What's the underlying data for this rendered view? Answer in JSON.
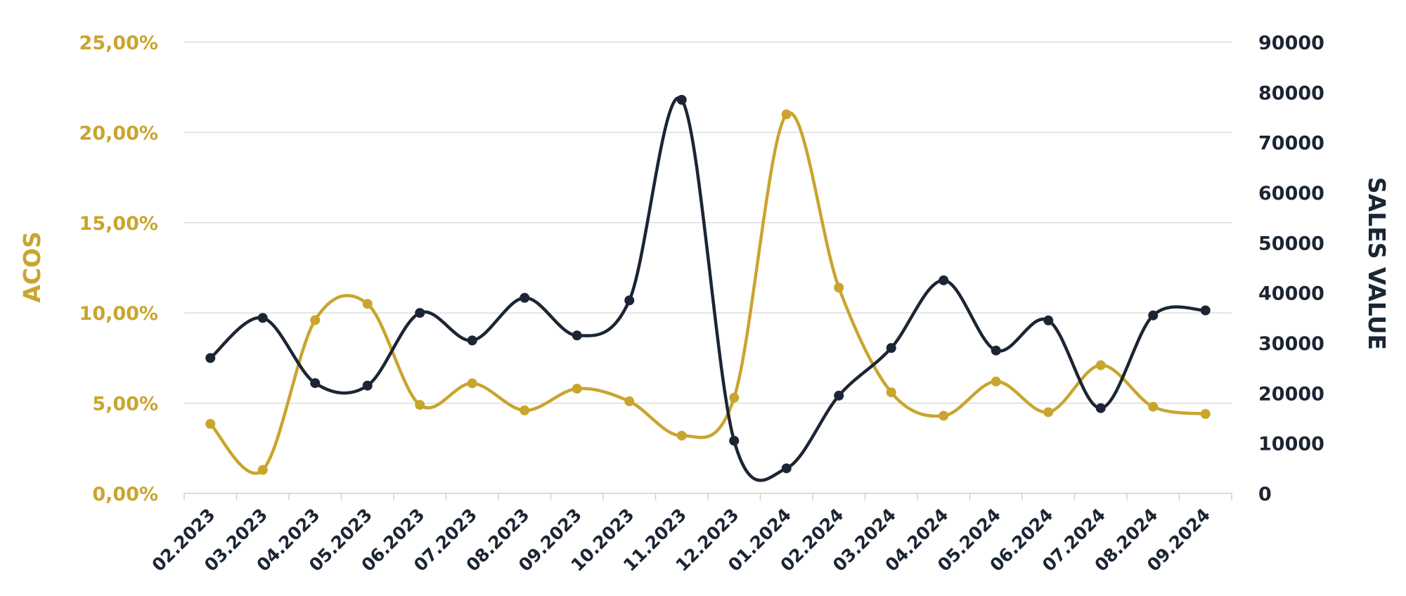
{
  "chart_data": {
    "type": "line",
    "categories": [
      "02.2023",
      "03.2023",
      "04.2023",
      "05.2023",
      "06.2023",
      "07.2023",
      "08.2023",
      "09.2023",
      "10.2023",
      "11.2023",
      "12.2023",
      "01.2024",
      "02.2024",
      "03.2024",
      "04.2024",
      "05.2024",
      "06.2024",
      "07.2024",
      "08.2024",
      "09.2024"
    ],
    "series": [
      {
        "name": "ACOS",
        "axis": "left",
        "color": "#C9A52E",
        "values": [
          3.85,
          1.3,
          9.6,
          10.5,
          4.9,
          6.1,
          4.6,
          5.8,
          5.1,
          3.2,
          5.3,
          21.0,
          11.4,
          5.6,
          4.3,
          6.2,
          4.5,
          7.1,
          4.8,
          4.4
        ]
      },
      {
        "name": "SALES VALUE",
        "axis": "right",
        "color": "#1B2533",
        "values": [
          27000,
          35000,
          22000,
          21500,
          36000,
          30500,
          39000,
          31500,
          38500,
          78500,
          10500,
          5000,
          19500,
          29000,
          42500,
          28500,
          34500,
          17000,
          35500,
          36500
        ]
      }
    ],
    "left_axis": {
      "label": "ACOS",
      "ylim": [
        0,
        25
      ],
      "ticks": [
        "0,00%",
        "5,00%",
        "10,00%",
        "15,00%",
        "20,00%",
        "25,00%"
      ],
      "tick_values": [
        0,
        5,
        10,
        15,
        20,
        25
      ]
    },
    "right_axis": {
      "label": "SALES VALUE",
      "ylim": [
        0,
        90000
      ],
      "ticks": [
        "0",
        "10000",
        "20000",
        "30000",
        "40000",
        "50000",
        "60000",
        "70000",
        "80000",
        "90000"
      ],
      "tick_values": [
        0,
        10000,
        20000,
        30000,
        40000,
        50000,
        60000,
        70000,
        80000,
        90000
      ]
    },
    "grid": true,
    "legend": "none"
  }
}
